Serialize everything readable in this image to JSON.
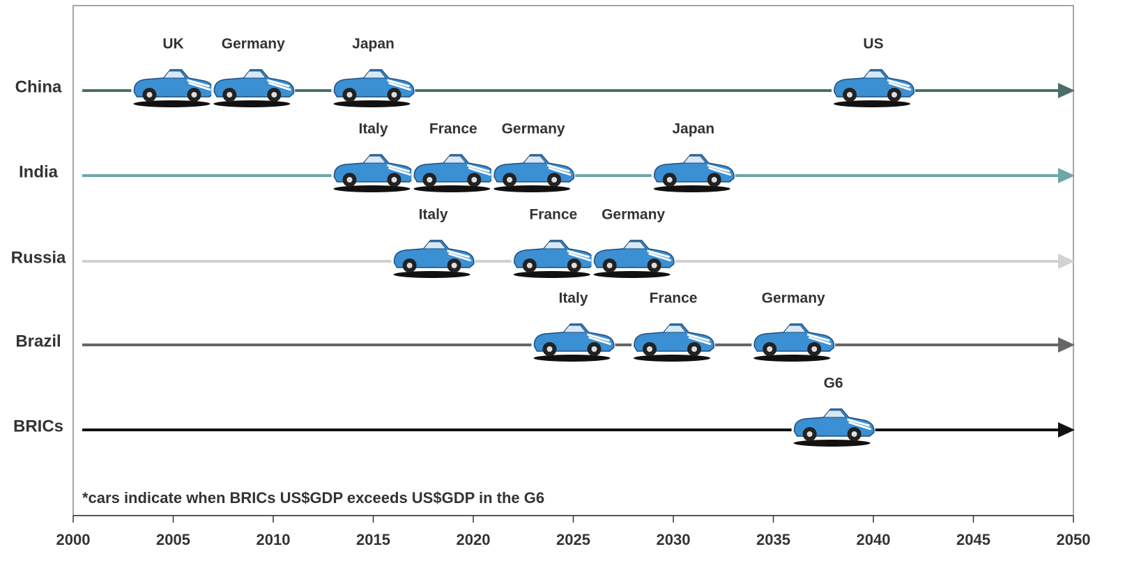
{
  "chart_data": {
    "type": "timeline",
    "note": "*cars indicate when BRICs US$GDP exceeds US$GDP in the G6",
    "xlim": [
      2000,
      2050
    ],
    "xticks": [
      2000,
      2005,
      2010,
      2015,
      2020,
      2025,
      2030,
      2035,
      2040,
      2045,
      2050
    ],
    "series": [
      {
        "name": "China",
        "color": "#4b6e69",
        "labels": [
          "UK",
          "Germany",
          "Japan",
          "US"
        ],
        "values": [
          2005,
          2009,
          2015,
          2040
        ]
      },
      {
        "name": "India",
        "color": "#6fa6a6",
        "labels": [
          "Italy",
          "France",
          "Germany",
          "Japan"
        ],
        "values": [
          2015,
          2019,
          2023,
          2031
        ]
      },
      {
        "name": "Russia",
        "color": "#d2d2d2",
        "labels": [
          "Italy",
          "France",
          "Germany"
        ],
        "values": [
          2018,
          2024,
          2028
        ]
      },
      {
        "name": "Brazil",
        "color": "#666666",
        "labels": [
          "Italy",
          "France",
          "Germany"
        ],
        "values": [
          2025,
          2030,
          2036
        ]
      },
      {
        "name": "BRICs",
        "color": "#111111",
        "labels": [
          "G6"
        ],
        "values": [
          2038
        ]
      }
    ]
  }
}
